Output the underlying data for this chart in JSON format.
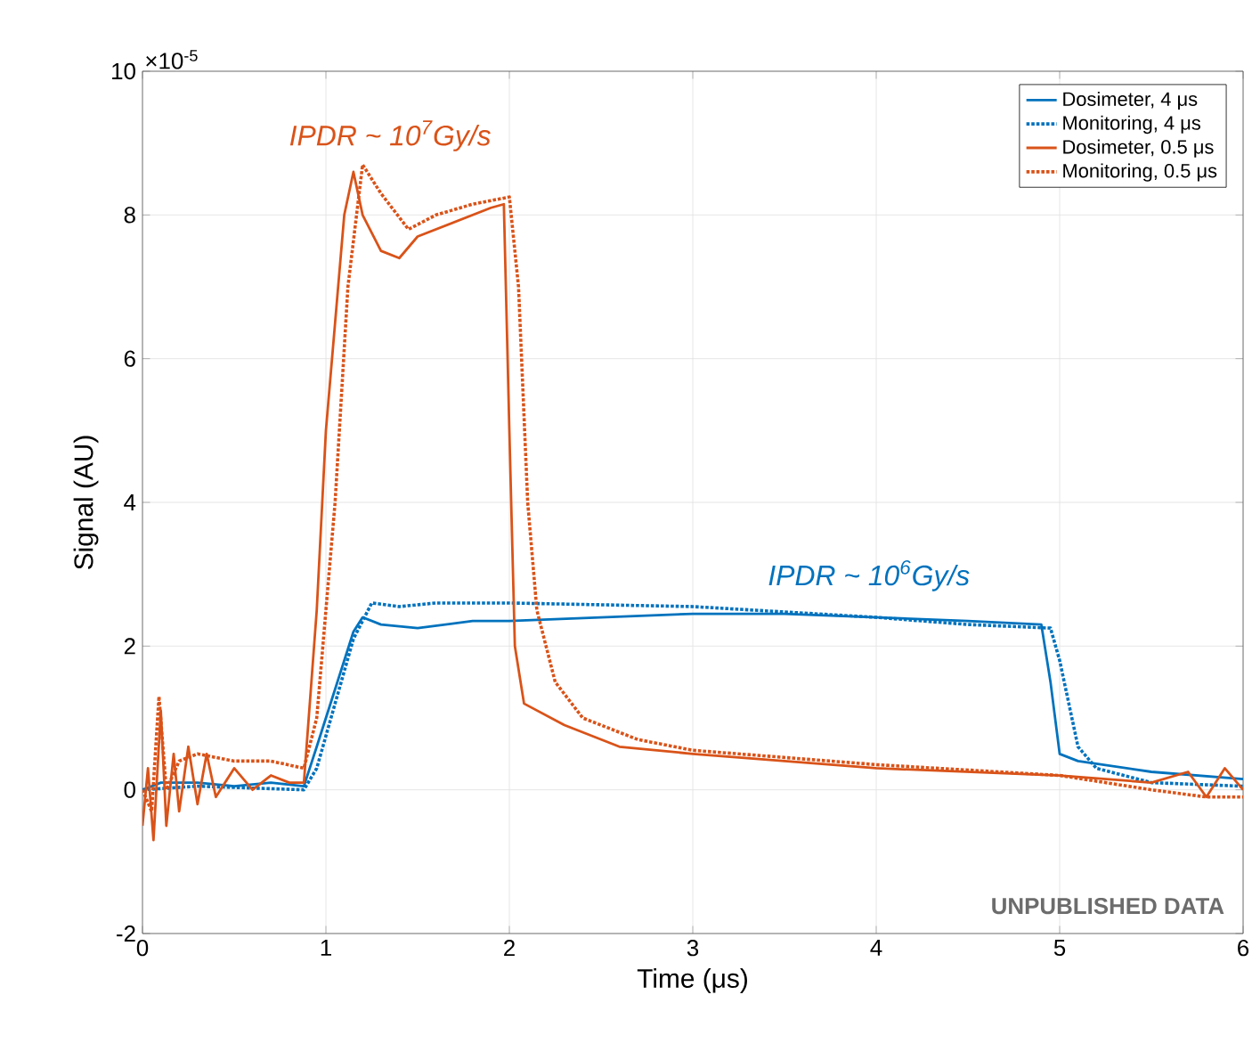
{
  "chart_data": {
    "type": "line",
    "xlabel": "Time (μs)",
    "ylabel": "Signal (AU)",
    "xlim": [
      0,
      6
    ],
    "ylim": [
      -2,
      10
    ],
    "xticks": [
      0,
      1,
      2,
      3,
      4,
      5,
      6
    ],
    "yticks": [
      -2,
      0,
      2,
      4,
      6,
      8,
      10
    ],
    "grid": true,
    "legend": "top right",
    "marker": "none",
    "annotations": [
      "×10$^{-5}$",
      "UNPUBLISHED DATA",
      "*IPDR* ~ 10$^{7}$*Gy/s*",
      "*IPDR* ~ 10$^{6}$*Gy/s*"
    ],
    "series": [
      {
        "name": "Dosimeter, 4 μs",
        "color": "#0072bd",
        "line_style": "solid",
        "x": [
          0,
          0.1,
          0.3,
          0.5,
          0.7,
          0.88,
          0.95,
          1.05,
          1.15,
          1.2,
          1.3,
          1.5,
          1.8,
          2.0,
          2.5,
          3,
          3.5,
          4,
          4.5,
          4.9,
          4.95,
          5.0,
          5.1,
          5.5,
          6
        ],
        "values": [
          0,
          0.1,
          0.1,
          0.05,
          0.1,
          0.05,
          0.6,
          1.4,
          2.2,
          2.4,
          2.3,
          2.25,
          2.35,
          2.35,
          2.4,
          2.45,
          2.45,
          2.4,
          2.35,
          2.3,
          1.5,
          0.5,
          0.4,
          0.25,
          0.15
        ]
      },
      {
        "name": "Monitoring, 4 μs",
        "color": "#0072bd",
        "line_style": "dotted",
        "x": [
          0,
          0.3,
          0.88,
          0.95,
          1.05,
          1.15,
          1.25,
          1.4,
          1.6,
          2,
          3,
          4,
          4.5,
          4.95,
          5.0,
          5.1,
          5.2,
          5.5,
          6
        ],
        "values": [
          0,
          0.05,
          0,
          0.3,
          1.2,
          2.1,
          2.6,
          2.55,
          2.6,
          2.6,
          2.55,
          2.4,
          2.3,
          2.25,
          1.8,
          0.6,
          0.3,
          0.1,
          0.05
        ]
      },
      {
        "name": "Dosimeter, 0.5 μs",
        "color": "#d95319",
        "line_style": "solid",
        "x": [
          0,
          0.03,
          0.06,
          0.1,
          0.13,
          0.17,
          0.2,
          0.25,
          0.3,
          0.35,
          0.4,
          0.5,
          0.6,
          0.7,
          0.8,
          0.88,
          0.95,
          1.0,
          1.05,
          1.1,
          1.15,
          1.2,
          1.3,
          1.4,
          1.5,
          1.7,
          1.9,
          1.97,
          2.0,
          2.03,
          2.08,
          2.3,
          2.6,
          3,
          4,
          5,
          5.5,
          5.7,
          5.8,
          5.9,
          6
        ],
        "values": [
          -0.5,
          0.3,
          -0.7,
          1.1,
          -0.5,
          0.5,
          -0.3,
          0.6,
          -0.2,
          0.5,
          -0.1,
          0.3,
          0,
          0.2,
          0.1,
          0.1,
          2.5,
          5,
          6.5,
          8.0,
          8.6,
          8.0,
          7.5,
          7.4,
          7.7,
          7.9,
          8.1,
          8.15,
          5,
          2.0,
          1.2,
          0.9,
          0.6,
          0.5,
          0.3,
          0.2,
          0.1,
          0.25,
          -0.1,
          0.3,
          0
        ]
      },
      {
        "name": "Monitoring, 0.5 μs",
        "color": "#d95319",
        "line_style": "dotted",
        "x": [
          0,
          0.05,
          0.09,
          0.13,
          0.2,
          0.3,
          0.5,
          0.7,
          0.88,
          0.95,
          1.05,
          1.12,
          1.2,
          1.3,
          1.45,
          1.6,
          1.8,
          2.0,
          2.05,
          2.1,
          2.15,
          2.25,
          2.4,
          2.7,
          3,
          4,
          5,
          5.5,
          5.8,
          6
        ],
        "values": [
          0,
          -0.3,
          1.3,
          0,
          0.4,
          0.5,
          0.4,
          0.4,
          0.3,
          1,
          4,
          7,
          8.7,
          8.3,
          7.8,
          8.0,
          8.15,
          8.25,
          7,
          4,
          2.5,
          1.5,
          1.0,
          0.7,
          0.55,
          0.35,
          0.2,
          0,
          -0.1,
          -0.1
        ]
      }
    ]
  }
}
